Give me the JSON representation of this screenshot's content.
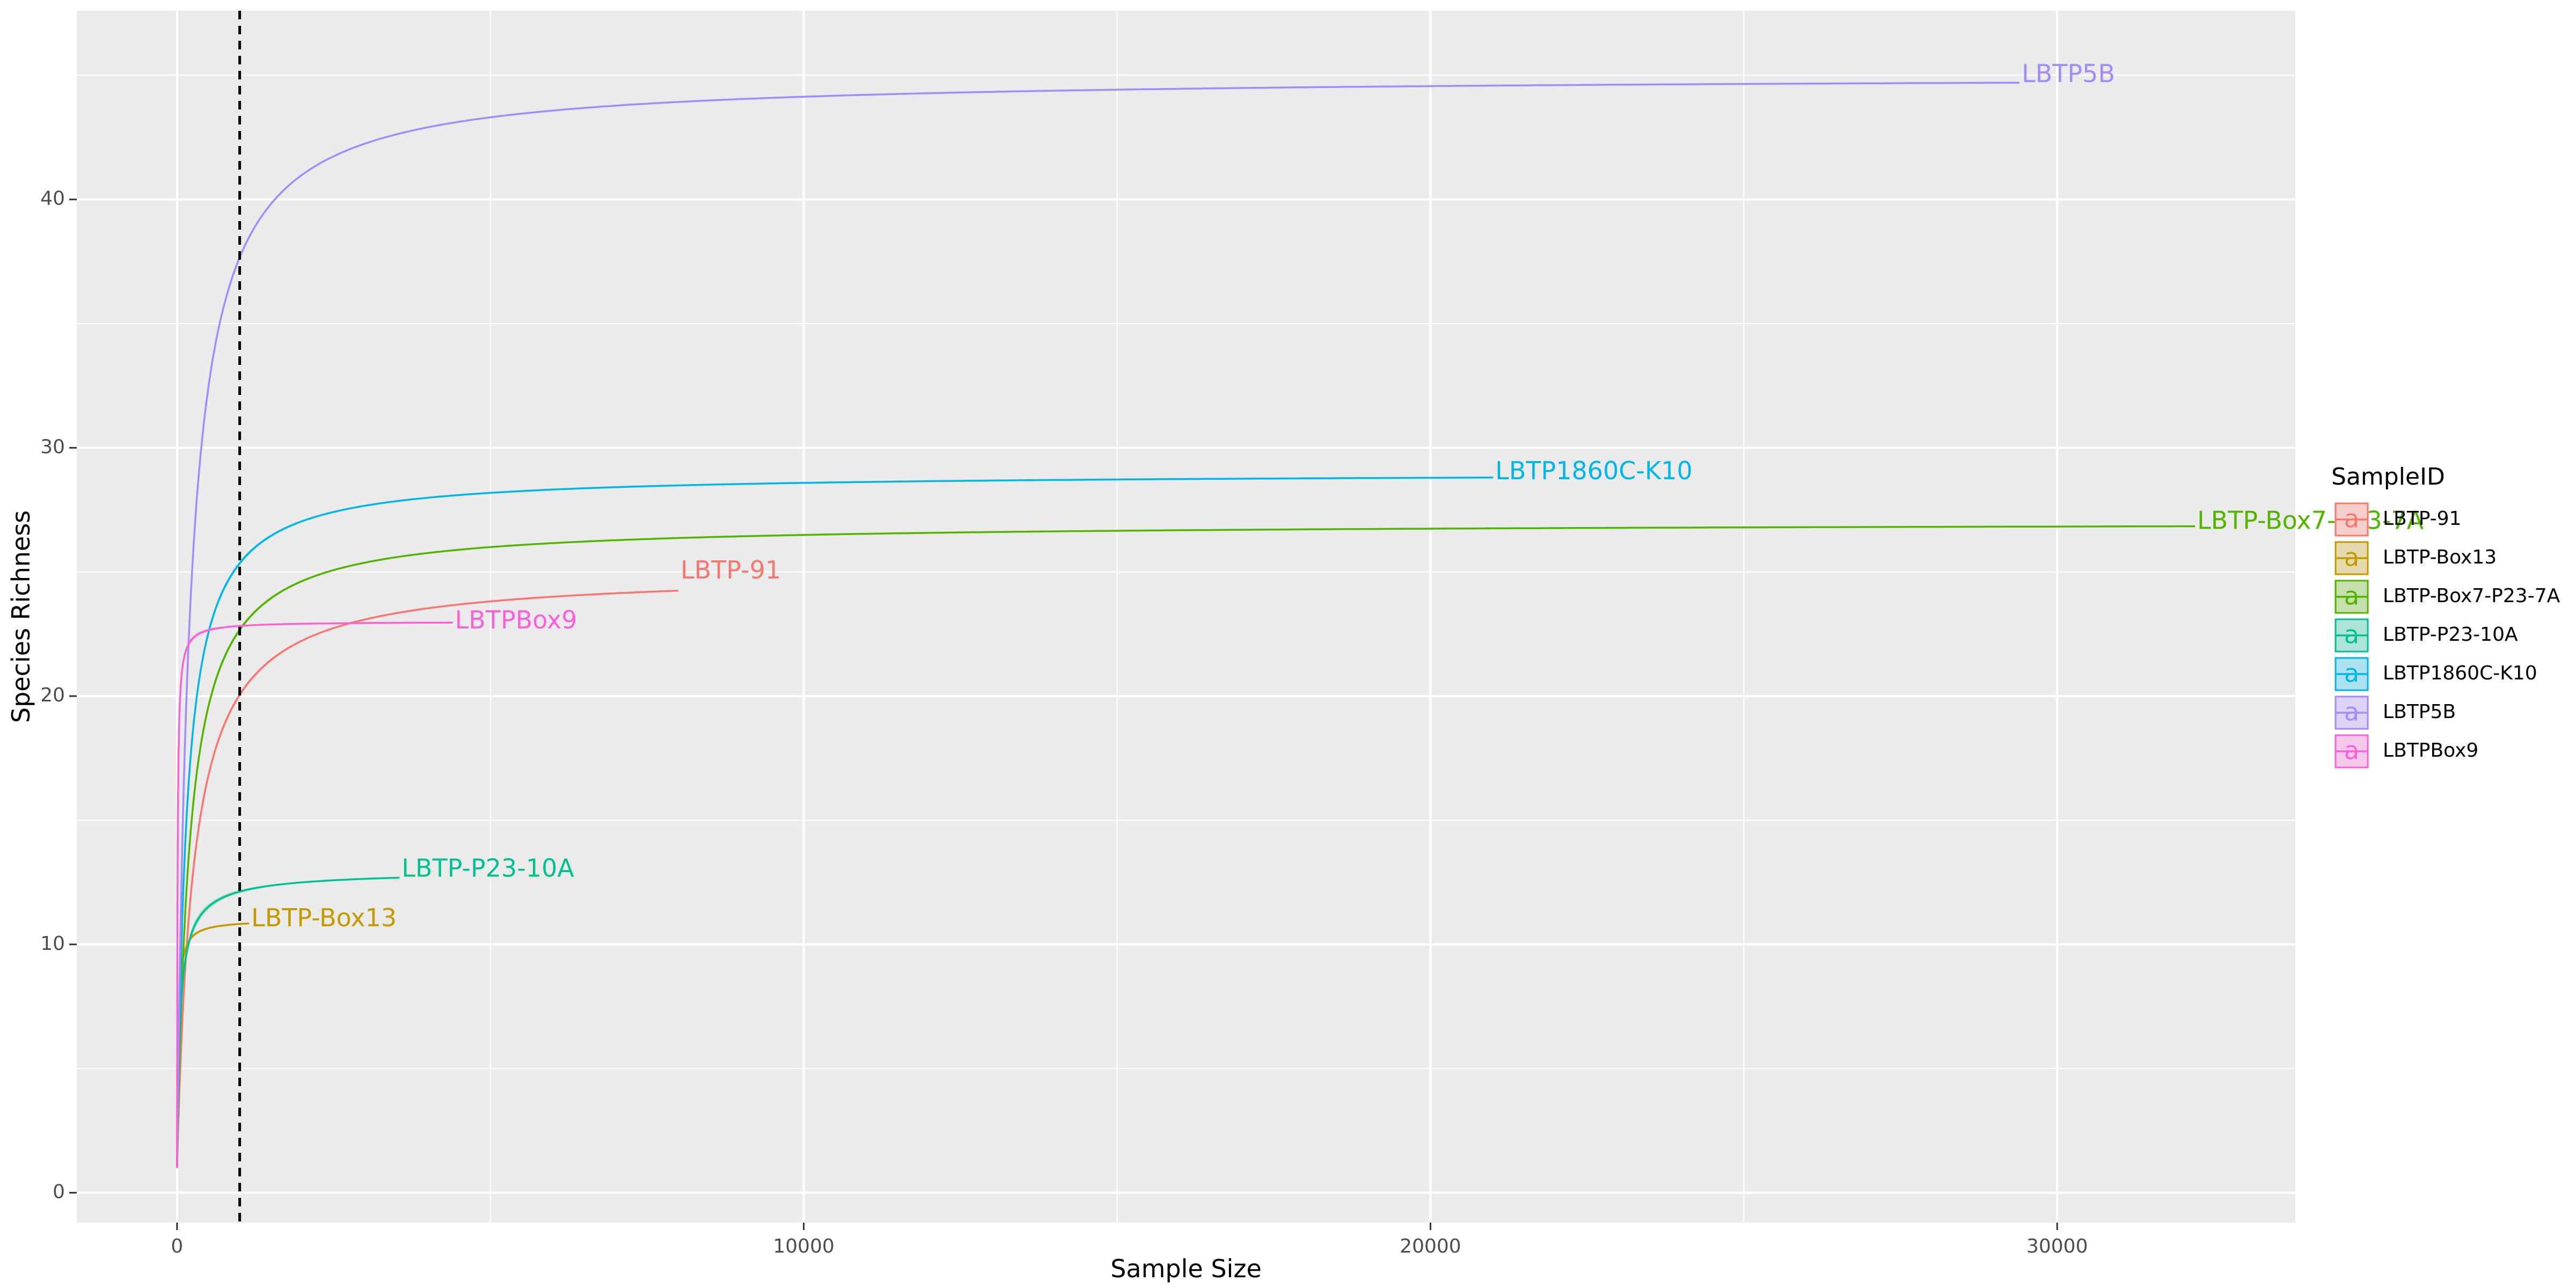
{
  "chart_data": {
    "type": "line",
    "title": "",
    "xlabel": "Sample Size",
    "ylabel": "Species Richness",
    "xlim": [
      -1600,
      33800
    ],
    "ylim": [
      -1.2,
      47.6
    ],
    "x_ticks": [
      0,
      10000,
      20000,
      30000
    ],
    "y_ticks": [
      0,
      10,
      20,
      30,
      40
    ],
    "grid": true,
    "vline": {
      "x": 1000,
      "style": "dashed"
    },
    "legend": {
      "title": "SampleID",
      "position": "right",
      "glyph": "a"
    },
    "series": [
      {
        "name": "LBTP-91",
        "color": "#F8766D",
        "label": "LBTP-91",
        "max_x": 8000,
        "asymptote": 25,
        "half": 260,
        "shape": 1.0,
        "ci": 1.0,
        "points": [
          [
            0,
            1
          ],
          [
            500,
            22.7
          ],
          [
            1000,
            23.9
          ],
          [
            2000,
            24.5
          ],
          [
            4000,
            24.8
          ],
          [
            8000,
            25
          ]
        ]
      },
      {
        "name": "LBTP-Box13",
        "color": "#C49A00",
        "label": "LBTP-Box13",
        "max_x": 1150,
        "asymptote": 11,
        "half": 18,
        "shape": 1.0,
        "ci": 0.25,
        "points": [
          [
            0,
            1
          ],
          [
            200,
            10.9
          ],
          [
            1150,
            11
          ]
        ]
      },
      {
        "name": "LBTP-Box7-P23-7A",
        "color": "#53B400",
        "label": "LBTP-Box7-P23-7A",
        "max_x": 32200,
        "asymptote": 27,
        "half": 200,
        "shape": 1.0,
        "ci": 1.0,
        "points": [
          [
            0,
            1
          ],
          [
            500,
            25.1
          ],
          [
            1000,
            25.9
          ],
          [
            2000,
            26.4
          ],
          [
            5000,
            26.8
          ],
          [
            10000,
            27
          ],
          [
            32200,
            27
          ]
        ]
      },
      {
        "name": "LBTP-P23-10A",
        "color": "#00C094",
        "label": "LBTP-P23-10A",
        "max_x": 3550,
        "asymptote": 13,
        "half": 50,
        "shape": 0.85,
        "ci": 0.7,
        "points": [
          [
            0,
            1
          ],
          [
            200,
            11.7
          ],
          [
            1000,
            12.5
          ],
          [
            2000,
            12.8
          ],
          [
            3550,
            13
          ]
        ]
      },
      {
        "name": "LBTP1860C-K10",
        "color": "#00B6EB",
        "label": "LBTP1860C-K10",
        "max_x": 21000,
        "asymptote": 29,
        "half": 150,
        "shape": 1.0,
        "ci": 1.0,
        "points": [
          [
            0,
            1
          ],
          [
            500,
            26.3
          ],
          [
            1000,
            27.5
          ],
          [
            2000,
            28.2
          ],
          [
            5000,
            28.7
          ],
          [
            21000,
            29
          ]
        ]
      },
      {
        "name": "LBTP5B",
        "color": "#A58AFF",
        "label": "LBTP5B",
        "max_x": 29400,
        "asymptote": 45,
        "half": 200,
        "shape": 1.0,
        "ci": 1.0,
        "points": [
          [
            0,
            1
          ],
          [
            500,
            38.3
          ],
          [
            1000,
            41.5
          ],
          [
            2000,
            43.1
          ],
          [
            5000,
            44.3
          ],
          [
            10000,
            44.8
          ],
          [
            29400,
            45
          ]
        ]
      },
      {
        "name": "LBTPBox9",
        "color": "#FB61D7",
        "label": "LBTPBox9",
        "max_x": 4400,
        "asymptote": 23,
        "half": 8,
        "shape": 1.0,
        "ci": 0.35,
        "points": [
          [
            0,
            1
          ],
          [
            200,
            22.2
          ],
          [
            1000,
            22.8
          ],
          [
            4400,
            23
          ]
        ]
      }
    ]
  }
}
